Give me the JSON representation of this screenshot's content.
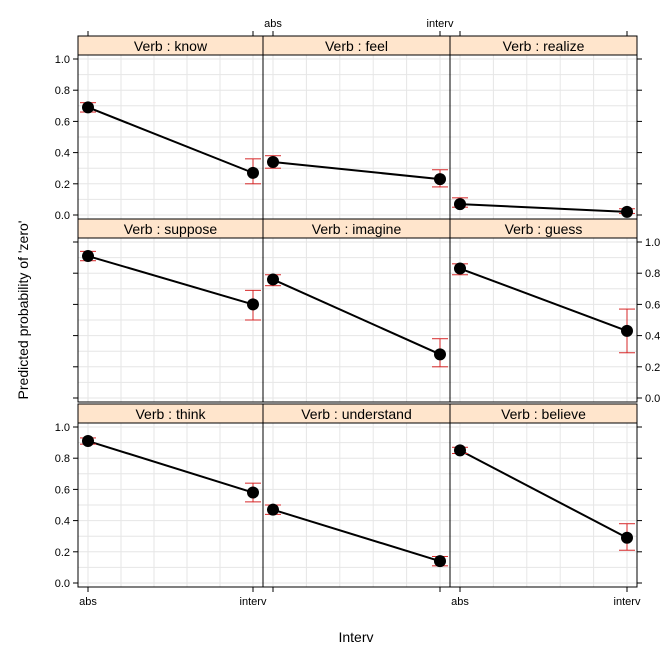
{
  "chart_data": {
    "type": "line",
    "xlabel": "Interv",
    "ylabel": "Predicted probability of 'zero'",
    "x_categories": [
      "abs",
      "interv"
    ],
    "ylim": [
      0,
      1
    ],
    "y_ticks": [
      "0.0",
      "0.2",
      "0.4",
      "0.6",
      "0.8",
      "1.0"
    ],
    "grid": true,
    "colors": {
      "line": "#000000",
      "point": "#000000",
      "error_bar": "#d62728",
      "strip": "#ffe5cc",
      "grid": "#e6e6e6"
    },
    "panels": [
      {
        "strip": "Verb : know",
        "values": [
          0.69,
          0.27
        ],
        "lower": [
          0.66,
          0.2
        ],
        "upper": [
          0.72,
          0.36
        ]
      },
      {
        "strip": "Verb : feel",
        "values": [
          0.34,
          0.23
        ],
        "lower": [
          0.3,
          0.18
        ],
        "upper": [
          0.38,
          0.29
        ]
      },
      {
        "strip": "Verb : realize",
        "values": [
          0.07,
          0.02
        ],
        "lower": [
          0.05,
          0.01
        ],
        "upper": [
          0.11,
          0.04
        ]
      },
      {
        "strip": "Verb : suppose",
        "values": [
          0.91,
          0.6
        ],
        "lower": [
          0.88,
          0.5
        ],
        "upper": [
          0.94,
          0.69
        ]
      },
      {
        "strip": "Verb : imagine",
        "values": [
          0.76,
          0.28
        ],
        "lower": [
          0.72,
          0.2
        ],
        "upper": [
          0.79,
          0.38
        ]
      },
      {
        "strip": "Verb : guess",
        "values": [
          0.83,
          0.43
        ],
        "lower": [
          0.79,
          0.29
        ],
        "upper": [
          0.86,
          0.57
        ]
      },
      {
        "strip": "Verb : think",
        "values": [
          0.91,
          0.58
        ],
        "lower": [
          0.89,
          0.52
        ],
        "upper": [
          0.93,
          0.64
        ]
      },
      {
        "strip": "Verb : understand",
        "values": [
          0.47,
          0.14
        ],
        "lower": [
          0.44,
          0.11
        ],
        "upper": [
          0.5,
          0.17
        ]
      },
      {
        "strip": "Verb : believe",
        "values": [
          0.85,
          0.29
        ],
        "lower": [
          0.83,
          0.21
        ],
        "upper": [
          0.87,
          0.38
        ]
      }
    ]
  }
}
